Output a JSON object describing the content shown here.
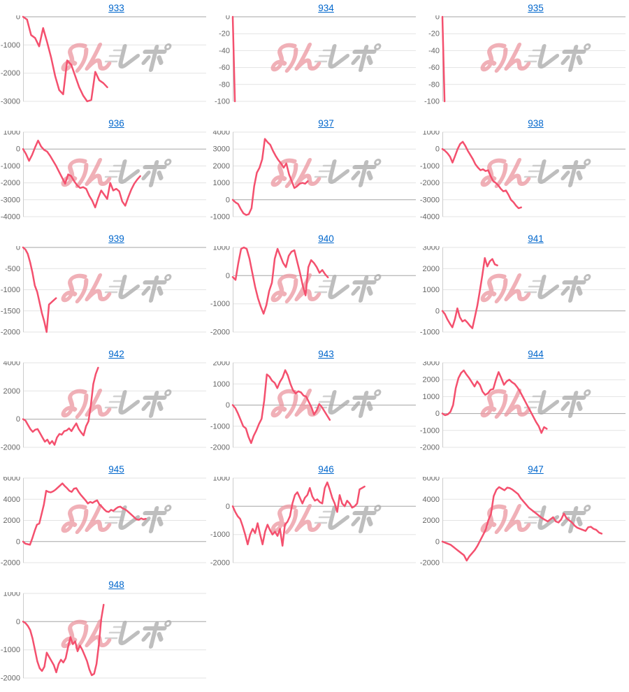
{
  "page": {
    "background": "#ffffff"
  },
  "styles": {
    "line_color": "#f4506e",
    "grid_color": "#e3e3e3",
    "zero_line_color": "#a6a6a6",
    "axis_color": "#cccccc",
    "tick_color": "#666666",
    "link_color": "#0066cc"
  },
  "watermark": {
    "text": "みんレポ",
    "pink": "#ec96a0",
    "gray": "#a9a9a9"
  },
  "chart_data": [
    {
      "type": "line",
      "title": "933",
      "xlabel": "",
      "ylabel": "",
      "grid": true,
      "legend": "none",
      "ticks": [
        0,
        -1000,
        -2000,
        -3000
      ],
      "x_end_fraction": 0.46,
      "values": [
        0,
        -100,
        -650,
        -750,
        -1050,
        -400,
        -900,
        -1450,
        -2100,
        -2600,
        -2750,
        -1550,
        -1700,
        -2100,
        -2500,
        -2800,
        -3000,
        -2950,
        -1950,
        -2250,
        -2350,
        -2500
      ]
    },
    {
      "type": "line",
      "title": "934",
      "xlabel": "",
      "ylabel": "",
      "grid": true,
      "legend": "none",
      "ticks": [
        0,
        -20,
        -40,
        -60,
        -80,
        -100
      ],
      "x_end_fraction": 0.012,
      "values": [
        0,
        -100
      ]
    },
    {
      "type": "line",
      "title": "935",
      "xlabel": "",
      "ylabel": "",
      "grid": true,
      "legend": "none",
      "ticks": [
        0,
        -20,
        -40,
        -60,
        -80,
        -100
      ],
      "x_end_fraction": 0.012,
      "values": [
        0,
        -100
      ]
    },
    {
      "type": "line",
      "title": "936",
      "xlabel": "",
      "ylabel": "",
      "grid": true,
      "legend": "none",
      "ticks": [
        1000,
        0,
        -1000,
        -2000,
        -3000,
        -4000
      ],
      "x_end_fraction": 0.64,
      "values": [
        0,
        -300,
        -700,
        -350,
        100,
        500,
        150,
        -50,
        -150,
        -400,
        -700,
        -1000,
        -1350,
        -1700,
        -2050,
        -1500,
        -1600,
        -1900,
        -2150,
        -2300,
        -2250,
        -2350,
        -2750,
        -3050,
        -3450,
        -2900,
        -2450,
        -2700,
        -2950,
        -2000,
        -2450,
        -2350,
        -2500,
        -3100,
        -3350,
        -2850,
        -2400,
        -2050,
        -1800,
        -1600
      ]
    },
    {
      "type": "line",
      "title": "937",
      "xlabel": "",
      "ylabel": "",
      "grid": true,
      "legend": "none",
      "ticks": [
        4000,
        3000,
        2000,
        1000,
        0,
        -1000
      ],
      "x_end_fraction": 0.41,
      "values": [
        0,
        -150,
        -250,
        -550,
        -800,
        -900,
        -850,
        -500,
        800,
        1600,
        1900,
        2400,
        3600,
        3400,
        3250,
        2900,
        2600,
        2350,
        2150,
        1900,
        2150,
        1500,
        1100,
        700,
        800,
        950,
        1000,
        950,
        1100
      ]
    },
    {
      "type": "line",
      "title": "938",
      "xlabel": "",
      "ylabel": "",
      "grid": true,
      "legend": "none",
      "ticks": [
        1000,
        0,
        -1000,
        -2000,
        -3000,
        -4000
      ],
      "x_end_fraction": 0.43,
      "values": [
        0,
        -100,
        -250,
        -450,
        -800,
        -400,
        0,
        300,
        430,
        200,
        -100,
        -350,
        -600,
        -900,
        -1100,
        -1250,
        -1200,
        -1300,
        -1250,
        -1600,
        -1900,
        -2000,
        -2150,
        -2350,
        -2500,
        -2450,
        -2700,
        -3000,
        -3150,
        -3350,
        -3500,
        -3450
      ]
    },
    {
      "type": "line",
      "title": "939",
      "xlabel": "",
      "ylabel": "",
      "grid": true,
      "legend": "none",
      "ticks": [
        0,
        -500,
        -1000,
        -1500,
        -2000
      ],
      "x_end_fraction": 0.18,
      "values": [
        0,
        -50,
        -150,
        -350,
        -600,
        -900,
        -1050,
        -1300,
        -1550,
        -1750,
        -2000,
        -1350,
        -1300,
        -1250,
        -1200
      ]
    },
    {
      "type": "line",
      "title": "940",
      "xlabel": "",
      "ylabel": "",
      "grid": true,
      "legend": "none",
      "ticks": [
        1000,
        0,
        -1000,
        -2000
      ],
      "x_end_fraction": 0.52,
      "values": [
        -50,
        -150,
        450,
        950,
        1000,
        950,
        600,
        100,
        -400,
        -800,
        -1100,
        -1350,
        -1050,
        -550,
        -250,
        600,
        950,
        700,
        450,
        300,
        700,
        850,
        900,
        500,
        100,
        -350,
        -700,
        300,
        550,
        450,
        300,
        100,
        200,
        50,
        -60
      ]
    },
    {
      "type": "line",
      "title": "941",
      "xlabel": "",
      "ylabel": "",
      "grid": true,
      "legend": "none",
      "ticks": [
        3000,
        2000,
        1000,
        0,
        -1000
      ],
      "x_end_fraction": 0.3,
      "values": [
        0,
        -150,
        -400,
        -600,
        -780,
        -400,
        120,
        -300,
        -500,
        -430,
        -550,
        -700,
        -820,
        -300,
        250,
        950,
        1700,
        2500,
        2100,
        2350,
        2450,
        2200,
        2150
      ]
    },
    {
      "type": "line",
      "title": "942",
      "xlabel": "",
      "ylabel": "",
      "grid": true,
      "legend": "none",
      "ticks": [
        4000,
        2000,
        0,
        -2000
      ],
      "x_end_fraction": 0.41,
      "values": [
        0,
        -100,
        -400,
        -700,
        -900,
        -750,
        -700,
        -1000,
        -1300,
        -1600,
        -1450,
        -1750,
        -1550,
        -1820,
        -1300,
        -1050,
        -1100,
        -850,
        -800,
        -650,
        -850,
        -550,
        -300,
        -700,
        -950,
        -1150,
        -500,
        -150,
        1000,
        2500,
        3200,
        3650
      ]
    },
    {
      "type": "line",
      "title": "943",
      "xlabel": "",
      "ylabel": "",
      "grid": true,
      "legend": "none",
      "ticks": [
        2000,
        1000,
        0,
        -1000,
        -2000
      ],
      "x_end_fraction": 0.53,
      "values": [
        0,
        -150,
        -400,
        -700,
        -1000,
        -1100,
        -1500,
        -1800,
        -1450,
        -1200,
        -900,
        -650,
        200,
        1450,
        1350,
        1150,
        1050,
        800,
        1100,
        1300,
        1650,
        1400,
        1000,
        700,
        550,
        650,
        600,
        450,
        400,
        150,
        -100,
        -450,
        -250,
        50,
        -100,
        -300,
        -500,
        -700
      ]
    },
    {
      "type": "line",
      "title": "944",
      "xlabel": "",
      "ylabel": "",
      "grid": true,
      "legend": "none",
      "ticks": [
        3000,
        2000,
        1000,
        0,
        -1000,
        -2000
      ],
      "x_end_fraction": 0.57,
      "values": [
        0,
        -100,
        -50,
        100,
        500,
        1500,
        2100,
        2400,
        2550,
        2300,
        2100,
        1850,
        1600,
        1900,
        1700,
        1300,
        1100,
        1200,
        1400,
        1450,
        2000,
        2450,
        2100,
        1700,
        1900,
        2000,
        1850,
        1750,
        1550,
        1300,
        1000,
        700,
        400,
        100,
        -200,
        -500,
        -750,
        -1150,
        -800,
        -900
      ]
    },
    {
      "type": "line",
      "title": "945",
      "xlabel": "",
      "ylabel": "",
      "grid": true,
      "legend": "none",
      "ticks": [
        6000,
        4000,
        2000,
        0,
        -2000
      ],
      "x_end_fraction": 0.67,
      "values": [
        0,
        -200,
        -250,
        -300,
        300,
        1000,
        1600,
        1700,
        2600,
        3500,
        4800,
        4700,
        4650,
        4750,
        4900,
        5100,
        5300,
        5500,
        5250,
        5050,
        4800,
        4700,
        5000,
        5050,
        4700,
        4400,
        4150,
        3900,
        3600,
        3750,
        3650,
        3800,
        3900,
        3500,
        3300,
        3050,
        2850,
        2800,
        3000,
        2900,
        3100,
        3250,
        3300,
        3150,
        3050,
        2900,
        2700,
        2500,
        2300,
        2100,
        2050,
        2200,
        2100,
        2150
      ]
    },
    {
      "type": "line",
      "title": "946",
      "xlabel": "",
      "ylabel": "",
      "grid": true,
      "legend": "none",
      "ticks": [
        1000,
        0,
        -1000,
        -2000
      ],
      "x_end_fraction": 0.72,
      "values": [
        0,
        -200,
        -350,
        -450,
        -700,
        -1000,
        -1350,
        -1000,
        -800,
        -950,
        -600,
        -1000,
        -1350,
        -900,
        -650,
        -850,
        -1000,
        -900,
        -1050,
        -800,
        -1400,
        -650,
        -550,
        -350,
        100,
        400,
        500,
        300,
        100,
        300,
        400,
        650,
        350,
        200,
        250,
        150,
        100,
        650,
        850,
        600,
        300,
        100,
        -200,
        400,
        100,
        0,
        200,
        100,
        -50,
        0,
        100,
        600,
        650,
        700
      ]
    },
    {
      "type": "line",
      "title": "947",
      "xlabel": "",
      "ylabel": "",
      "grid": true,
      "legend": "none",
      "ticks": [
        6000,
        4000,
        2000,
        0,
        -2000
      ],
      "x_end_fraction": 0.87,
      "values": [
        0,
        -100,
        -200,
        -300,
        -500,
        -700,
        -900,
        -1100,
        -1300,
        -1800,
        -1400,
        -1100,
        -800,
        -400,
        100,
        600,
        1100,
        2000,
        2600,
        4300,
        4900,
        5150,
        5000,
        4850,
        5100,
        5050,
        4900,
        4700,
        4500,
        4100,
        3800,
        3500,
        3200,
        3000,
        2800,
        2600,
        2400,
        2200,
        2050,
        1900,
        2100,
        2300,
        1900,
        1800,
        2100,
        2650,
        2200,
        2000,
        1800,
        1500,
        1300,
        1200,
        1100,
        1000,
        1350,
        1400,
        1200,
        1100,
        850,
        750
      ]
    },
    {
      "type": "line",
      "title": "948",
      "xlabel": "",
      "ylabel": "",
      "grid": true,
      "legend": "none",
      "ticks": [
        1000,
        0,
        -1000,
        -2000
      ],
      "x_end_fraction": 0.44,
      "values": [
        0,
        -50,
        -150,
        -300,
        -600,
        -1000,
        -1400,
        -1650,
        -1750,
        -1600,
        -1100,
        -1250,
        -1400,
        -1550,
        -1800,
        -1500,
        -1350,
        -1450,
        -1300,
        -900,
        -550,
        -800,
        -700,
        -1050,
        -850,
        -1000,
        -1200,
        -1400,
        -1700,
        -1900,
        -1850,
        -1500,
        -800,
        100,
        600
      ]
    }
  ]
}
